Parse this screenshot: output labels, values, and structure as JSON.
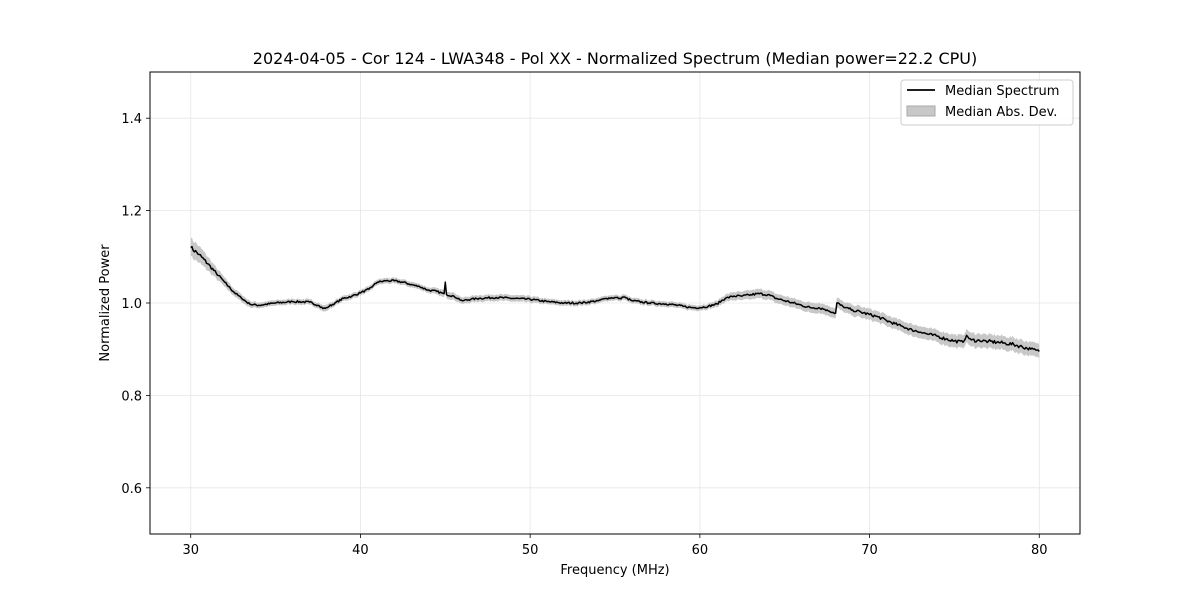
{
  "chart_data": {
    "type": "line",
    "title": "2024-04-05 - Cor 124 - LWA348 - Pol XX - Normalized Spectrum (Median power=22.2 CPU)",
    "xlabel": "Frequency (MHz)",
    "ylabel": "Normalized Power",
    "xlim": [
      27.6,
      82.4
    ],
    "ylim": [
      0.5,
      1.5
    ],
    "xticks": [
      30,
      40,
      50,
      60,
      70,
      80
    ],
    "yticks": [
      0.6,
      0.8,
      1.0,
      1.2,
      1.4
    ],
    "ytick_labels": [
      "0.6",
      "0.8",
      "1.0",
      "1.2",
      "1.4"
    ],
    "grid": true,
    "legend_position": "top-right",
    "colors": {
      "line": "#000000",
      "band": "#c8c8c8",
      "grid": "#e6e6e6"
    },
    "series": [
      {
        "name": "Median Spectrum",
        "x": [
          30,
          30.5,
          31,
          31.5,
          32,
          32.5,
          33,
          33.5,
          34,
          35,
          36,
          37,
          37.5,
          37.8,
          38,
          38.5,
          39,
          39.5,
          40,
          40.5,
          41,
          41.5,
          42,
          42.5,
          43,
          43.5,
          44,
          44.5,
          44.9,
          45,
          45.1,
          45.5,
          46,
          46.5,
          47,
          48,
          49,
          50,
          51,
          52,
          53,
          54,
          54.5,
          55,
          55.3,
          55.5,
          56,
          57,
          58,
          58.5,
          59,
          59.5,
          60,
          60.5,
          61,
          61.5,
          62,
          62.5,
          63,
          63.5,
          64,
          64.5,
          65,
          65.5,
          66,
          66.5,
          67,
          67.5,
          68,
          68.1,
          68.5,
          69,
          69.5,
          70,
          70.5,
          71,
          71.5,
          72,
          72.5,
          73,
          73.5,
          74,
          74.5,
          75,
          75.5,
          75.7,
          76,
          76.5,
          77,
          77.5,
          78,
          78.5,
          79,
          79.5,
          80
        ],
        "values": [
          1.12,
          1.105,
          1.085,
          1.065,
          1.045,
          1.025,
          1.01,
          0.997,
          0.995,
          1.0,
          1.003,
          1.002,
          0.995,
          0.988,
          0.99,
          1.0,
          1.01,
          1.015,
          1.022,
          1.03,
          1.045,
          1.048,
          1.048,
          1.045,
          1.04,
          1.035,
          1.028,
          1.025,
          1.02,
          1.045,
          1.018,
          1.015,
          1.005,
          1.008,
          1.01,
          1.012,
          1.01,
          1.008,
          1.003,
          1.0,
          1.0,
          1.005,
          1.01,
          1.012,
          1.01,
          1.013,
          1.005,
          1.0,
          0.998,
          0.996,
          0.993,
          0.99,
          0.99,
          0.993,
          0.998,
          1.01,
          1.015,
          1.015,
          1.018,
          1.02,
          1.018,
          1.01,
          1.005,
          1.0,
          0.995,
          0.99,
          0.99,
          0.985,
          0.978,
          1.0,
          0.99,
          0.985,
          0.98,
          0.975,
          0.97,
          0.962,
          0.955,
          0.948,
          0.942,
          0.937,
          0.932,
          0.928,
          0.922,
          0.918,
          0.915,
          0.93,
          0.92,
          0.918,
          0.917,
          0.915,
          0.913,
          0.91,
          0.905,
          0.9,
          0.895
        ]
      },
      {
        "name": "Median Abs. Dev.",
        "band_halfwidth": [
          0.02,
          0.018,
          0.015,
          0.012,
          0.01,
          0.008,
          0.008,
          0.007,
          0.006,
          0.006,
          0.006,
          0.006,
          0.006,
          0.007,
          0.007,
          0.006,
          0.006,
          0.006,
          0.006,
          0.006,
          0.006,
          0.006,
          0.006,
          0.006,
          0.006,
          0.006,
          0.006,
          0.007,
          0.008,
          0.008,
          0.008,
          0.008,
          0.007,
          0.007,
          0.007,
          0.007,
          0.007,
          0.007,
          0.006,
          0.006,
          0.006,
          0.006,
          0.006,
          0.006,
          0.006,
          0.006,
          0.006,
          0.006,
          0.006,
          0.006,
          0.006,
          0.006,
          0.006,
          0.006,
          0.007,
          0.008,
          0.009,
          0.009,
          0.01,
          0.01,
          0.01,
          0.01,
          0.01,
          0.01,
          0.01,
          0.011,
          0.011,
          0.011,
          0.011,
          0.011,
          0.011,
          0.012,
          0.012,
          0.012,
          0.012,
          0.012,
          0.012,
          0.012,
          0.013,
          0.013,
          0.013,
          0.013,
          0.014,
          0.014,
          0.014,
          0.014,
          0.015,
          0.015,
          0.015,
          0.015,
          0.015,
          0.015,
          0.015,
          0.015,
          0.015
        ]
      }
    ]
  }
}
